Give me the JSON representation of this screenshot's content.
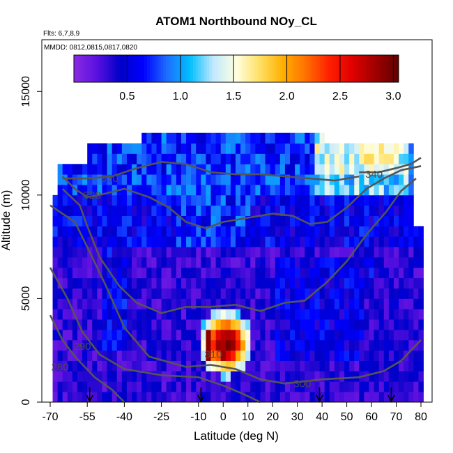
{
  "chart_data": {
    "type": "heatmap",
    "title": "ATOM1 Northbound NOy_CL",
    "annotations": {
      "flights": "Flts: 6,7,8,9",
      "dates": "MMDD: 0812,0815,0817,0820"
    },
    "xlabel": "Latitude (deg N)",
    "ylabel": "Altitude (m)",
    "xlim": [
      -70,
      80
    ],
    "ylim": [
      0,
      17500
    ],
    "x_ticks": [
      "-70",
      "-55",
      "-40",
      "-25",
      "-10",
      "0",
      "10",
      "20",
      "30",
      "40",
      "50",
      "60",
      "70",
      "80"
    ],
    "x_tick_values": [
      -70,
      -55,
      -40,
      -25,
      -10,
      0,
      10,
      20,
      30,
      40,
      50,
      60,
      70,
      80
    ],
    "y_ticks": [
      "0",
      "5000",
      "10000",
      "15000"
    ],
    "y_tick_values": [
      0,
      5000,
      10000,
      15000
    ],
    "colorbar": {
      "range": [
        0,
        3.05
      ],
      "ticks": [
        "0.5",
        "1.0",
        "1.5",
        "2.0",
        "2.5",
        "3.0"
      ],
      "tick_values": [
        0.5,
        1.0,
        1.5,
        2.0,
        2.5,
        3.0
      ],
      "colors": [
        "#8a2be2",
        "#5a10e0",
        "#0000c8",
        "#0000ff",
        "#1e6cff",
        "#00bfff",
        "#bfe8ff",
        "#ffffe0",
        "#ffe066",
        "#ffb000",
        "#ff7000",
        "#ff2000",
        "#e00000",
        "#a00000",
        "#600000"
      ]
    },
    "contours": [
      {
        "label": "280",
        "label_x": -66,
        "label_y": 1700,
        "points": [
          [
            -70,
            4200
          ],
          [
            -65,
            3000
          ],
          [
            -60,
            2200
          ],
          [
            -52,
            1200
          ],
          [
            -45,
            600
          ],
          [
            -40,
            0
          ]
        ]
      },
      {
        "label": "290",
        "label_x": -57,
        "label_y": 2700,
        "points": [
          [
            -70,
            6500
          ],
          [
            -63,
            5000
          ],
          [
            -57,
            3400
          ],
          [
            -50,
            2300
          ],
          [
            -40,
            1600
          ],
          [
            -25,
            1300
          ],
          [
            -10,
            1200
          ],
          [
            0,
            800
          ],
          [
            8,
            400
          ],
          [
            15,
            0
          ]
        ]
      },
      {
        "label": "300",
        "label_x": 32,
        "label_y": 900,
        "points": [
          [
            -70,
            9500
          ],
          [
            -60,
            8700
          ],
          [
            -53,
            7000
          ],
          [
            -47,
            5500
          ],
          [
            -40,
            3600
          ],
          [
            -30,
            2200
          ],
          [
            -15,
            1700
          ],
          [
            -5,
            1800
          ],
          [
            5,
            1600
          ],
          [
            15,
            1100
          ],
          [
            25,
            900
          ],
          [
            40,
            1100
          ],
          [
            55,
            1200
          ],
          [
            65,
            1500
          ],
          [
            72,
            2000
          ],
          [
            80,
            3000
          ]
        ]
      },
      {
        "label": "310",
        "label_x": -4,
        "label_y": 2300,
        "points": [
          [
            -65,
            10300
          ],
          [
            -58,
            9500
          ],
          [
            -55,
            8500
          ],
          [
            -50,
            7000
          ],
          [
            -42,
            5600
          ],
          [
            -35,
            4800
          ],
          [
            -25,
            4300
          ],
          [
            -15,
            4600
          ],
          [
            -5,
            4600
          ],
          [
            5,
            4700
          ],
          [
            15,
            4400
          ],
          [
            25,
            4800
          ],
          [
            33,
            4900
          ],
          [
            42,
            5800
          ],
          [
            50,
            6800
          ],
          [
            58,
            8100
          ],
          [
            66,
            9200
          ],
          [
            72,
            10200
          ],
          [
            78,
            10800
          ]
        ]
      },
      {
        "label": "320",
        "label_x": -53,
        "label_y": 10000,
        "points": [
          [
            -65,
            10900
          ],
          [
            -60,
            10300
          ],
          [
            -55,
            9900
          ],
          [
            -50,
            10000
          ],
          [
            -40,
            10300
          ],
          [
            -30,
            9900
          ],
          [
            -22,
            9400
          ],
          [
            -15,
            8700
          ],
          [
            -7,
            8400
          ],
          [
            0,
            8700
          ],
          [
            10,
            8900
          ],
          [
            20,
            9100
          ],
          [
            28,
            9000
          ],
          [
            35,
            8600
          ],
          [
            42,
            8700
          ],
          [
            50,
            9400
          ],
          [
            58,
            10300
          ],
          [
            65,
            10800
          ],
          [
            72,
            11200
          ],
          [
            80,
            11400
          ]
        ]
      },
      {
        "label": "330",
        "label_x": -46,
        "label_y": 10800,
        "points": [
          [
            -65,
            10800
          ],
          [
            -55,
            10800
          ],
          [
            -45,
            10900
          ],
          [
            -35,
            11300
          ],
          [
            -25,
            11600
          ],
          [
            -15,
            11500
          ],
          [
            -5,
            11100
          ],
          [
            5,
            11000
          ],
          [
            15,
            11000
          ],
          [
            25,
            10900
          ],
          [
            35,
            10800
          ],
          [
            45,
            10700
          ],
          [
            55,
            10900
          ]
        ]
      },
      {
        "label": "340",
        "label_x": 61,
        "label_y": 11000,
        "points": [
          [
            55,
            11100
          ],
          [
            63,
            11100
          ],
          [
            70,
            11300
          ],
          [
            76,
            11500
          ],
          [
            80,
            11800
          ]
        ]
      }
    ],
    "flight_arrows_x": [
      -54,
      -9,
      39,
      68
    ]
  }
}
